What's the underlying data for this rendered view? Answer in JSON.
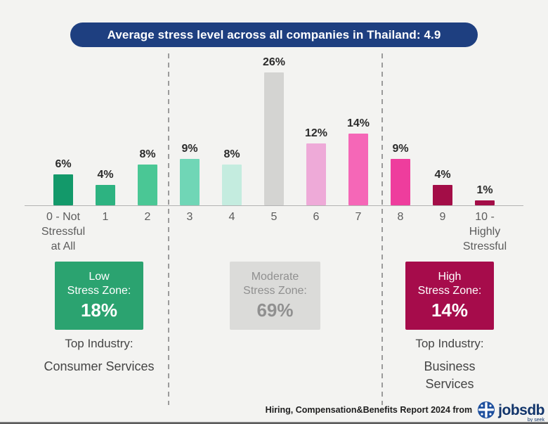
{
  "title": {
    "text": "Average stress level across all companies in Thailand: 4.9"
  },
  "chart_data": {
    "type": "bar",
    "title": "Average stress level across all companies in Thailand: 4.9",
    "categories": [
      "0 - Not Stressful at All",
      "1",
      "2",
      "3",
      "4",
      "5",
      "6",
      "7",
      "8",
      "9",
      "10 - Highly Stressful"
    ],
    "tick_labels": [
      "0 - Not\nStressful\nat All",
      "1",
      "2",
      "3",
      "4",
      "5",
      "6",
      "7",
      "8",
      "9",
      "10 -\nHighly\nStressful"
    ],
    "values": [
      6,
      4,
      8,
      9,
      8,
      26,
      12,
      14,
      9,
      4,
      1
    ],
    "value_labels": [
      "6%",
      "4%",
      "8%",
      "9%",
      "8%",
      "26%",
      "12%",
      "14%",
      "9%",
      "4%",
      "1%"
    ],
    "bar_colors": [
      "#13996a",
      "#2db381",
      "#4ac795",
      "#70d6b6",
      "#c4ecdf",
      "#d4d4d2",
      "#eeaad8",
      "#f567b7",
      "#ee3d9d",
      "#a30d47",
      "#a30d47"
    ],
    "xlabel": "",
    "ylabel": "",
    "ylim": [
      0,
      28
    ],
    "grid": false,
    "legend": false,
    "average": 4.9,
    "zones": [
      {
        "label": "Low Stress Zone:",
        "percent": "18%",
        "categories_range": [
          "0",
          "2"
        ],
        "color": "#2ba370",
        "top_industry": "Consumer Services"
      },
      {
        "label": "Moderate Stress Zone:",
        "percent": "69%",
        "categories_range": [
          "3",
          "7"
        ],
        "color": "#dbdbd9"
      },
      {
        "label": "High Stress Zone:",
        "percent": "14%",
        "categories_range": [
          "8",
          "10"
        ],
        "color": "#a60c4b",
        "top_industry": "Business Services"
      }
    ]
  },
  "zone_boxes": {
    "low": {
      "line1": "Low",
      "line2": "Stress Zone:",
      "percent": "18%"
    },
    "moderate": {
      "line1": "Moderate",
      "line2": "Stress Zone:",
      "percent": "69%"
    },
    "high": {
      "line1": "High",
      "line2": "Stress Zone:",
      "percent": "14%"
    }
  },
  "industries": {
    "low_label": "Top Industry:",
    "low_value": "Consumer Services",
    "high_label": "Top Industry:",
    "high_value": "Business\nServices"
  },
  "footer": {
    "text": "Hiring, Compensation&Benefits Report 2024 from",
    "logo": "jobsdb",
    "logo_sub": "by seek"
  },
  "colors": {
    "background": "#f3f3f1",
    "title_navy": "#1e3f80",
    "zone_green": "#2ba370",
    "zone_gray": "#dbdbd9",
    "zone_maroon": "#a60c4b",
    "logo_blue": "#1d4f9e"
  }
}
